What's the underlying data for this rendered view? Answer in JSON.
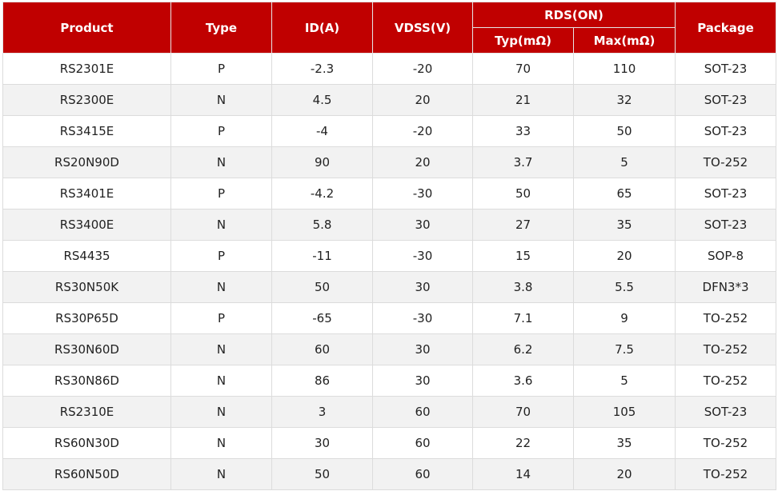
{
  "colors": {
    "header_bg": "#c00000",
    "header_text": "#ffffff",
    "alt_row": "#f2f2f2"
  },
  "headers": {
    "product": "Product",
    "type": "Type",
    "id": "ID(A)",
    "vdss": "VDSS(V)",
    "rds": "RDS(ON)",
    "typ": "Typ(mΩ)",
    "max": "Max(mΩ)",
    "package": "Package"
  },
  "rows": [
    [
      "RS2301E",
      "P",
      "-2.3",
      "-20",
      "70",
      "110",
      "SOT-23"
    ],
    [
      "RS2300E",
      "N",
      "4.5",
      "20",
      "21",
      "32",
      "SOT-23"
    ],
    [
      "RS3415E",
      "P",
      "-4",
      "-20",
      "33",
      "50",
      "SOT-23"
    ],
    [
      "RS20N90D",
      "N",
      "90",
      "20",
      "3.7",
      "5",
      "TO-252"
    ],
    [
      "RS3401E",
      "P",
      "-4.2",
      "-30",
      "50",
      "65",
      "SOT-23"
    ],
    [
      "RS3400E",
      "N",
      "5.8",
      "30",
      "27",
      "35",
      "SOT-23"
    ],
    [
      "RS4435",
      "P",
      "-11",
      "-30",
      "15",
      "20",
      "SOP-8"
    ],
    [
      "RS30N50K",
      "N",
      "50",
      "30",
      "3.8",
      "5.5",
      "DFN3*3"
    ],
    [
      "RS30P65D",
      "P",
      "-65",
      "-30",
      "7.1",
      "9",
      "TO-252"
    ],
    [
      "RS30N60D",
      "N",
      "60",
      "30",
      "6.2",
      "7.5",
      "TO-252"
    ],
    [
      "RS30N86D",
      "N",
      "86",
      "30",
      "3.6",
      "5",
      "TO-252"
    ],
    [
      "RS2310E",
      "N",
      "3",
      "60",
      "70",
      "105",
      "SOT-23"
    ],
    [
      "RS60N30D",
      "N",
      "30",
      "60",
      "22",
      "35",
      "TO-252"
    ],
    [
      "RS60N50D",
      "N",
      "50",
      "60",
      "14",
      "20",
      "TO-252"
    ]
  ]
}
